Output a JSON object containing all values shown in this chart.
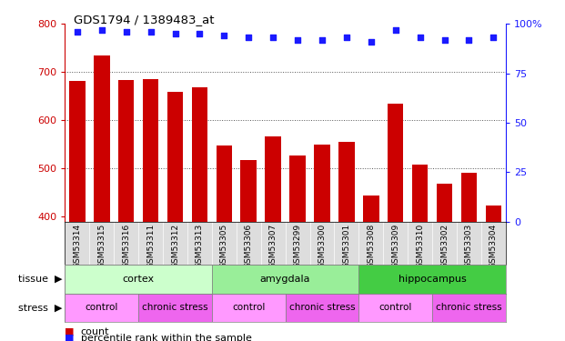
{
  "title": "GDS1794 / 1389483_at",
  "samples": [
    "GSM53314",
    "GSM53315",
    "GSM53316",
    "GSM53311",
    "GSM53312",
    "GSM53313",
    "GSM53305",
    "GSM53306",
    "GSM53307",
    "GSM53299",
    "GSM53300",
    "GSM53301",
    "GSM53308",
    "GSM53309",
    "GSM53310",
    "GSM53302",
    "GSM53303",
    "GSM53304"
  ],
  "counts": [
    682,
    735,
    683,
    685,
    660,
    668,
    547,
    517,
    567,
    528,
    550,
    556,
    445,
    635,
    509,
    468,
    491,
    424
  ],
  "percentile_ranks": [
    96,
    97,
    96,
    96,
    95,
    95,
    94,
    93,
    93,
    92,
    92,
    93,
    91,
    97,
    93,
    92,
    92,
    93
  ],
  "ylim_left": [
    390,
    800
  ],
  "ylim_right": [
    0,
    100
  ],
  "yticks_left": [
    400,
    500,
    600,
    700,
    800
  ],
  "yticks_right": [
    0,
    25,
    50,
    75,
    100
  ],
  "bar_color": "#cc0000",
  "dot_color": "#1a1aff",
  "tissue_groups": [
    {
      "label": "cortex",
      "start": 0,
      "end": 6,
      "color": "#ccffcc"
    },
    {
      "label": "amygdala",
      "start": 6,
      "end": 12,
      "color": "#99ee99"
    },
    {
      "label": "hippocampus",
      "start": 12,
      "end": 18,
      "color": "#44cc44"
    }
  ],
  "stress_groups": [
    {
      "label": "control",
      "start": 0,
      "end": 3,
      "color": "#ff99ff"
    },
    {
      "label": "chronic stress",
      "start": 3,
      "end": 6,
      "color": "#ee66ee"
    },
    {
      "label": "control",
      "start": 6,
      "end": 9,
      "color": "#ff99ff"
    },
    {
      "label": "chronic stress",
      "start": 9,
      "end": 12,
      "color": "#ee66ee"
    },
    {
      "label": "control",
      "start": 12,
      "end": 15,
      "color": "#ff99ff"
    },
    {
      "label": "chronic stress",
      "start": 15,
      "end": 18,
      "color": "#ee66ee"
    }
  ],
  "axis_color_left": "#cc0000",
  "axis_color_right": "#1a1aff",
  "xtick_bg_color": "#dddddd",
  "divider_color": "#aaaaaa",
  "gridline_color": "#555555"
}
